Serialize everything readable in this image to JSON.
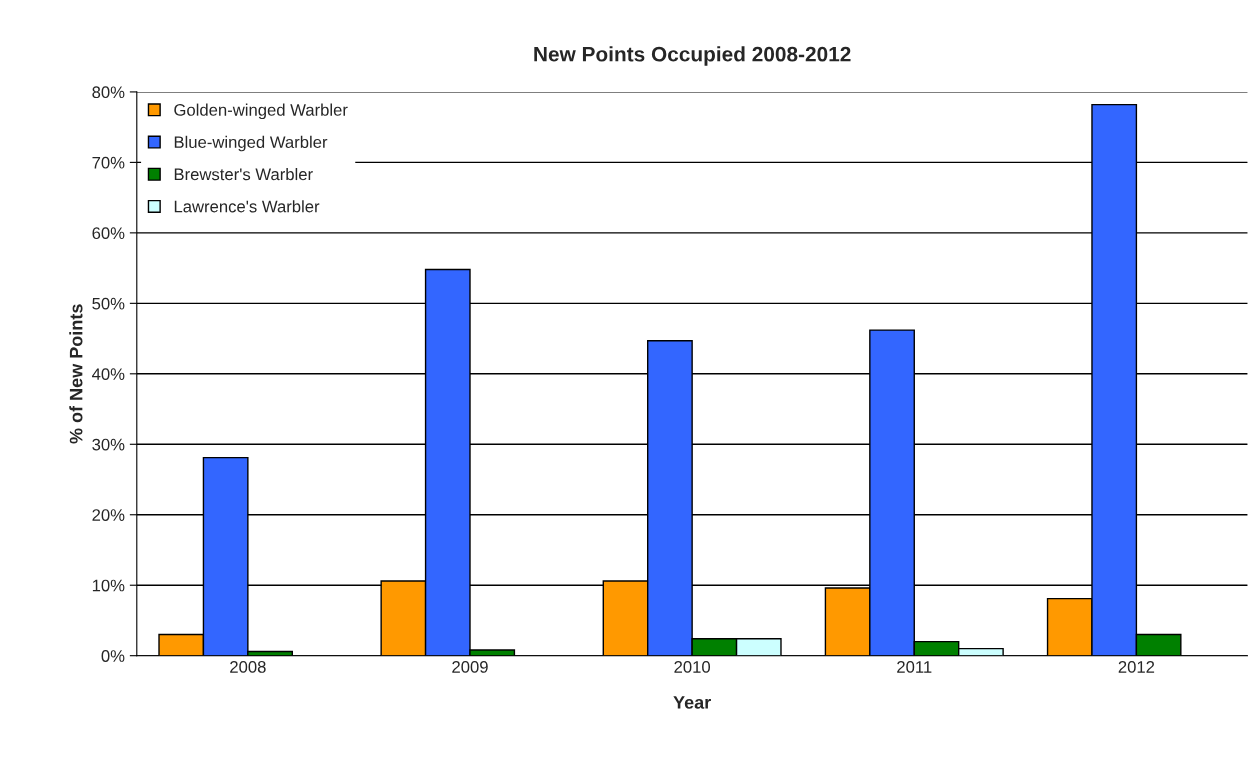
{
  "chart_data": {
    "type": "bar",
    "title": "New Points Occupied 2008-2012",
    "xlabel": "Year",
    "ylabel": "% of New Points",
    "categories": [
      "2008",
      "2009",
      "2010",
      "2011",
      "2012"
    ],
    "series": [
      {
        "name": "Golden-winged Warbler",
        "color": "#ff9900",
        "values": [
          3.0,
          10.6,
          10.6,
          9.6,
          8.1
        ]
      },
      {
        "name": "Blue-winged Warbler",
        "color": "#3366ff",
        "values": [
          28.1,
          54.8,
          44.7,
          46.2,
          78.2
        ]
      },
      {
        "name": "Brewster's Warbler",
        "color": "#008000",
        "values": [
          0.6,
          0.8,
          2.4,
          2.0,
          3.0
        ]
      },
      {
        "name": "Lawrence's Warbler",
        "color": "#ccffff",
        "values": [
          null,
          null,
          2.4,
          1.0,
          null
        ]
      }
    ],
    "ylim": [
      0,
      80
    ],
    "yticks": [
      {
        "value": 0,
        "label": "0%"
      },
      {
        "value": 10,
        "label": "10%"
      },
      {
        "value": 20,
        "label": "20%"
      },
      {
        "value": 30,
        "label": "30%"
      },
      {
        "value": 40,
        "label": "40%"
      },
      {
        "value": 50,
        "label": "50%"
      },
      {
        "value": 60,
        "label": "60%"
      },
      {
        "value": 70,
        "label": "70%"
      },
      {
        "value": 80,
        "label": "80%"
      }
    ],
    "grid": "y",
    "legend": "top left"
  }
}
